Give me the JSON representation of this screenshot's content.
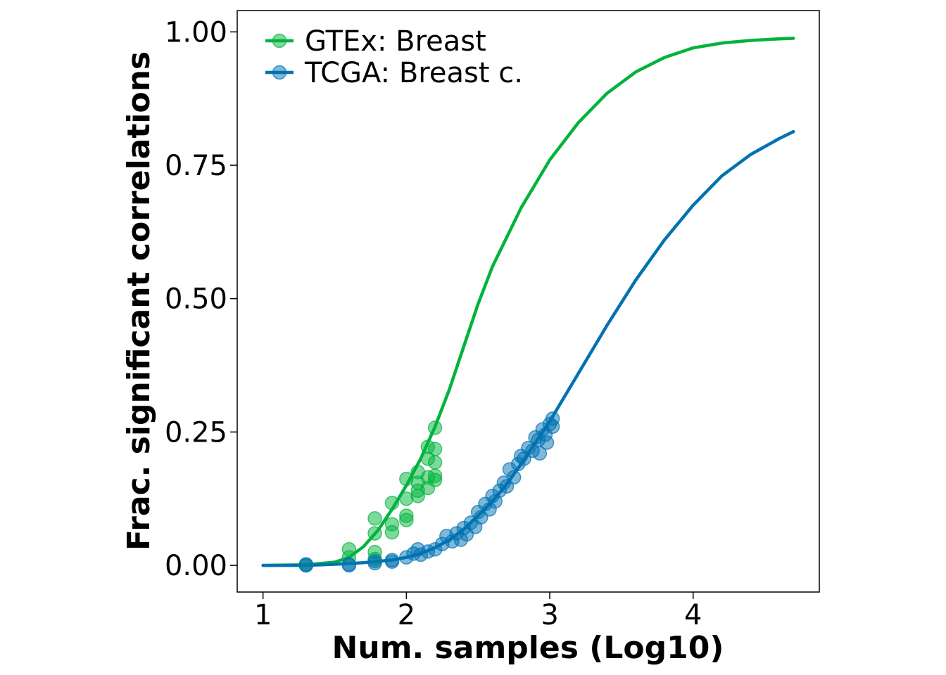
{
  "chart_data": {
    "type": "scatter",
    "xlabel": "Num. samples (Log10)",
    "ylabel": "Frac. significant correlations",
    "xlim": [
      0.82,
      4.88
    ],
    "ylim": [
      -0.05,
      1.04
    ],
    "xticks": [
      "1",
      "2",
      "3",
      "4"
    ],
    "xtick_values": [
      1,
      2,
      3,
      4
    ],
    "yticks": [
      "0.00",
      "0.25",
      "0.50",
      "0.75",
      "1.00"
    ],
    "ytick_values": [
      0,
      0.25,
      0.5,
      0.75,
      1.0
    ],
    "grid": false,
    "legend_position": "top-left",
    "series": [
      {
        "name": "GTEx: Breast",
        "color": "#00b33c",
        "marker": "circle",
        "fit_curve": {
          "x": [
            1.0,
            1.3,
            1.5,
            1.6,
            1.7,
            1.8,
            1.9,
            2.0,
            2.1,
            2.2,
            2.3,
            2.4,
            2.5,
            2.6,
            2.8,
            3.0,
            3.2,
            3.4,
            3.6,
            3.8,
            4.0,
            4.2,
            4.4,
            4.6,
            4.7
          ],
          "y": [
            0.0,
            0.001,
            0.006,
            0.015,
            0.035,
            0.065,
            0.105,
            0.15,
            0.2,
            0.26,
            0.33,
            0.41,
            0.49,
            0.56,
            0.67,
            0.76,
            0.83,
            0.885,
            0.925,
            0.952,
            0.97,
            0.979,
            0.984,
            0.987,
            0.988
          ]
        },
        "points": [
          [
            1.3,
            0.0
          ],
          [
            1.6,
            0.03
          ],
          [
            1.6,
            0.015
          ],
          [
            1.78,
            0.088
          ],
          [
            1.78,
            0.06
          ],
          [
            1.78,
            0.025
          ],
          [
            1.78,
            0.012
          ],
          [
            1.9,
            0.117
          ],
          [
            1.9,
            0.077
          ],
          [
            1.9,
            0.062
          ],
          [
            2.0,
            0.162
          ],
          [
            2.0,
            0.125
          ],
          [
            2.0,
            0.093
          ],
          [
            2.0,
            0.085
          ],
          [
            2.08,
            0.175
          ],
          [
            2.08,
            0.155
          ],
          [
            2.08,
            0.14
          ],
          [
            2.08,
            0.13
          ],
          [
            2.15,
            0.222
          ],
          [
            2.15,
            0.2
          ],
          [
            2.15,
            0.165
          ],
          [
            2.15,
            0.145
          ],
          [
            2.2,
            0.258
          ],
          [
            2.2,
            0.218
          ],
          [
            2.2,
            0.193
          ],
          [
            2.2,
            0.168
          ],
          [
            2.2,
            0.16
          ]
        ]
      },
      {
        "name": "TCGA: Breast c.",
        "color": "#0072b2",
        "marker": "circle",
        "fit_curve": {
          "x": [
            1.0,
            1.3,
            1.5,
            1.7,
            1.9,
            2.0,
            2.1,
            2.2,
            2.3,
            2.4,
            2.5,
            2.6,
            2.7,
            2.8,
            2.9,
            3.0,
            3.2,
            3.4,
            3.6,
            3.8,
            4.0,
            4.2,
            4.4,
            4.6,
            4.7
          ],
          "y": [
            0.0,
            0.0,
            0.002,
            0.005,
            0.01,
            0.015,
            0.022,
            0.033,
            0.048,
            0.068,
            0.093,
            0.12,
            0.152,
            0.19,
            0.23,
            0.27,
            0.36,
            0.45,
            0.535,
            0.61,
            0.675,
            0.73,
            0.77,
            0.8,
            0.813
          ]
        },
        "points": [
          [
            1.3,
            0.0
          ],
          [
            1.3,
            0.002
          ],
          [
            1.6,
            0.0
          ],
          [
            1.6,
            0.002
          ],
          [
            1.78,
            0.004
          ],
          [
            1.78,
            0.008
          ],
          [
            1.9,
            0.01
          ],
          [
            1.9,
            0.007
          ],
          [
            2.0,
            0.015
          ],
          [
            2.05,
            0.022
          ],
          [
            2.08,
            0.03
          ],
          [
            2.1,
            0.02
          ],
          [
            2.15,
            0.026
          ],
          [
            2.2,
            0.03
          ],
          [
            2.25,
            0.04
          ],
          [
            2.28,
            0.055
          ],
          [
            2.32,
            0.045
          ],
          [
            2.35,
            0.06
          ],
          [
            2.38,
            0.048
          ],
          [
            2.4,
            0.07
          ],
          [
            2.42,
            0.058
          ],
          [
            2.45,
            0.08
          ],
          [
            2.48,
            0.072
          ],
          [
            2.5,
            0.1
          ],
          [
            2.52,
            0.09
          ],
          [
            2.55,
            0.115
          ],
          [
            2.58,
            0.105
          ],
          [
            2.6,
            0.13
          ],
          [
            2.62,
            0.12
          ],
          [
            2.65,
            0.14
          ],
          [
            2.68,
            0.155
          ],
          [
            2.7,
            0.148
          ],
          [
            2.72,
            0.18
          ],
          [
            2.75,
            0.165
          ],
          [
            2.78,
            0.19
          ],
          [
            2.8,
            0.205
          ],
          [
            2.82,
            0.2
          ],
          [
            2.85,
            0.22
          ],
          [
            2.88,
            0.215
          ],
          [
            2.9,
            0.24
          ],
          [
            2.92,
            0.235
          ],
          [
            2.95,
            0.255
          ],
          [
            2.97,
            0.245
          ],
          [
            3.0,
            0.265
          ],
          [
            3.02,
            0.275
          ],
          [
            3.02,
            0.26
          ],
          [
            2.98,
            0.23
          ],
          [
            2.93,
            0.21
          ]
        ]
      }
    ]
  }
}
